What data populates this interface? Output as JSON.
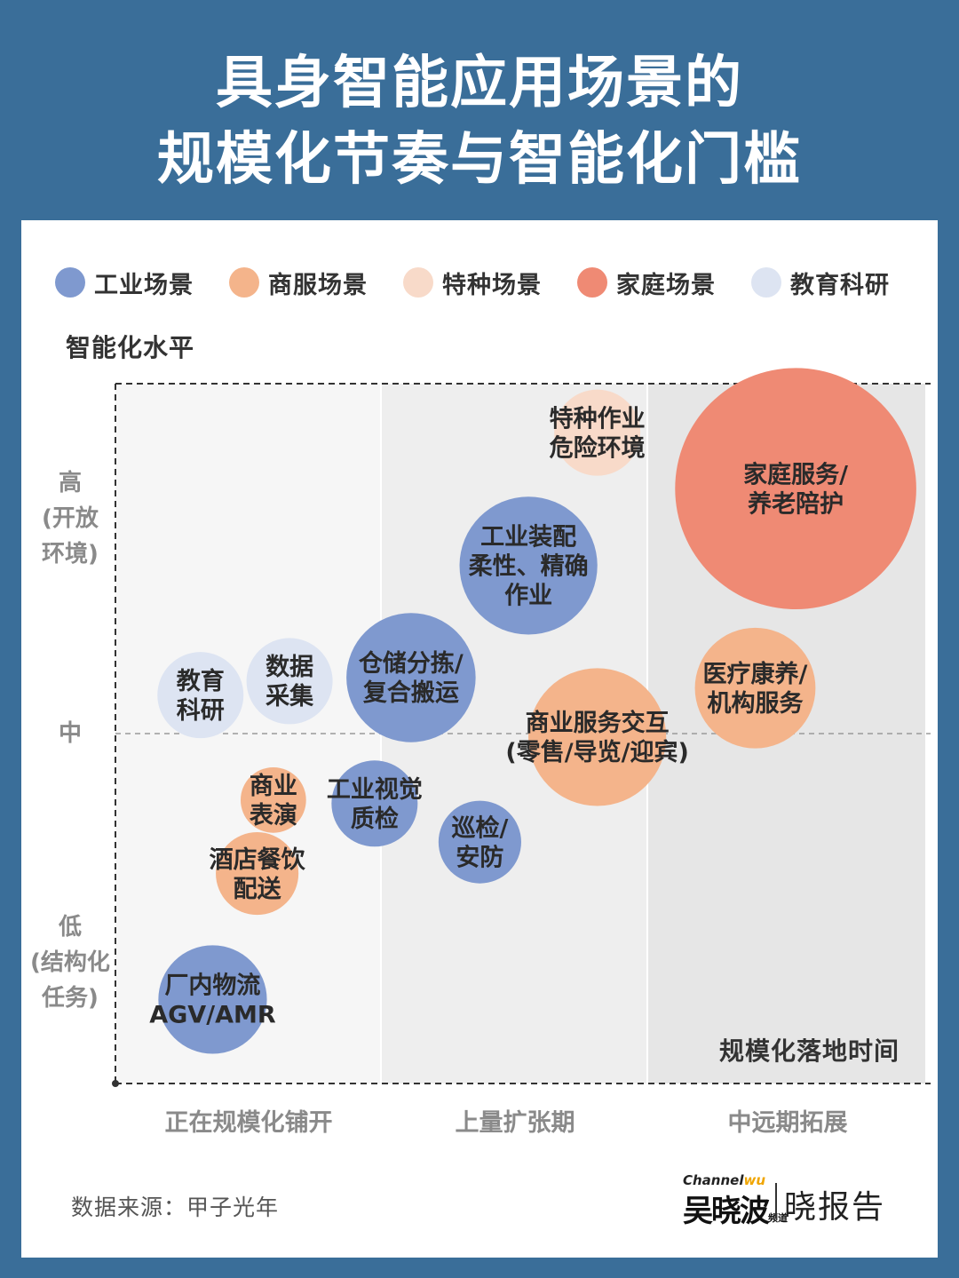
{
  "title_line1": "具身智能应用场景的",
  "title_line2": "规模化节奏与智能化门槛",
  "legend": [
    {
      "label": "工业场景",
      "color": "#7f99cf"
    },
    {
      "label": "商服场景",
      "color": "#f4b48b"
    },
    {
      "label": "特种场景",
      "color": "#f8dac9"
    },
    {
      "label": "家庭场景",
      "color": "#ef8a74"
    },
    {
      "label": "教育科研",
      "color": "#dde4f2"
    }
  ],
  "source": "数据来源：甲子光年",
  "logo": {
    "channel": "Channel",
    "wu": "wu",
    "name": "吴晓波",
    "sub": "频道",
    "report": "晓报告"
  },
  "chart_data": {
    "type": "scatter",
    "xlabel": "规模化落地时间",
    "ylabel": "智能化水平",
    "x_categories": [
      "正在规模化铺开",
      "上量扩张期",
      "中远期拓展"
    ],
    "y_ticks": [
      {
        "label": "高\n(开放\n环境)",
        "value": 8
      },
      {
        "label": "中",
        "value": 5
      },
      {
        "label": "低\n(结构化\n任务)",
        "value": 2
      }
    ],
    "xlim": [
      0,
      10
    ],
    "ylim": [
      0,
      10
    ],
    "points": [
      {
        "label": "特种作业\n危险环境",
        "category": "特种场景",
        "x": 5.95,
        "y": 9.3,
        "size": 0.5
      },
      {
        "label": "家庭服务/\n养老陪护",
        "category": "家庭场景",
        "x": 8.4,
        "y": 8.5,
        "size": 1.4
      },
      {
        "label": "工业装配\n柔性、精确\n作业",
        "category": "工业场景",
        "x": 5.1,
        "y": 7.4,
        "size": 0.8
      },
      {
        "label": "仓储分拣/\n复合搬运",
        "category": "工业场景",
        "x": 3.65,
        "y": 5.8,
        "size": 0.75
      },
      {
        "label": "数据\n采集",
        "category": "教育科研",
        "x": 2.15,
        "y": 5.75,
        "size": 0.5
      },
      {
        "label": "教育\n科研",
        "category": "教育科研",
        "x": 1.05,
        "y": 5.55,
        "size": 0.5
      },
      {
        "label": "医疗康养/\n机构服务",
        "category": "商服场景",
        "x": 7.9,
        "y": 5.65,
        "size": 0.7
      },
      {
        "label": "商业服务交互\n(零售/导览/迎宾)",
        "category": "商服场景",
        "x": 5.95,
        "y": 4.95,
        "size": 0.8
      },
      {
        "label": "商业\n表演",
        "category": "商服场景",
        "x": 1.95,
        "y": 4.05,
        "size": 0.38
      },
      {
        "label": "工业视觉\n质检",
        "category": "工业场景",
        "x": 3.2,
        "y": 4.0,
        "size": 0.5
      },
      {
        "label": "巡检/\n安防",
        "category": "工业场景",
        "x": 4.5,
        "y": 3.45,
        "size": 0.48
      },
      {
        "label": "酒店餐饮\n配送",
        "category": "商服场景",
        "x": 1.75,
        "y": 3.0,
        "size": 0.48
      },
      {
        "label": "厂内物流\nAGV/AMR",
        "category": "工业场景",
        "x": 1.2,
        "y": 1.2,
        "size": 0.63
      }
    ]
  }
}
